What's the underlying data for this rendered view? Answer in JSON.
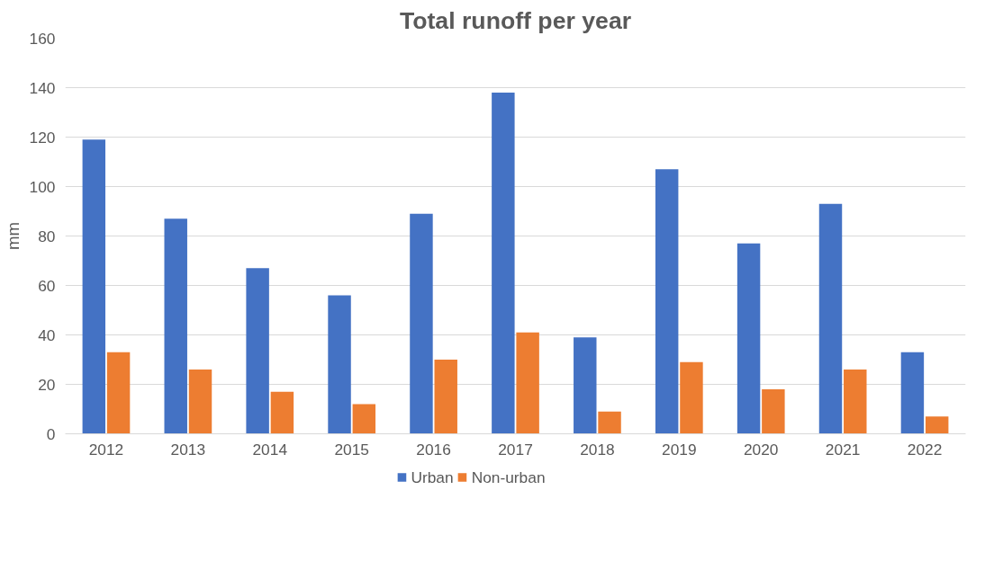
{
  "chart_data": {
    "type": "bar",
    "title": "Total runoff per year",
    "ylabel": "mm",
    "categories": [
      "2012",
      "2013",
      "2014",
      "2015",
      "2016",
      "2017",
      "2018",
      "2019",
      "2020",
      "2021",
      "2022"
    ],
    "series": [
      {
        "name": "Urban",
        "color": "#4472c4",
        "values": [
          119,
          87,
          67,
          56,
          89,
          138,
          39,
          107,
          77,
          93,
          33
        ]
      },
      {
        "name": "Non-urban",
        "color": "#ed7d31",
        "values": [
          33,
          26,
          17,
          12,
          30,
          41,
          9,
          29,
          18,
          26,
          7
        ]
      }
    ],
    "ylim": [
      0,
      160
    ],
    "yticks": [
      0,
      20,
      40,
      60,
      80,
      100,
      120,
      140,
      160
    ],
    "grid": "y",
    "legend": "bottom"
  }
}
